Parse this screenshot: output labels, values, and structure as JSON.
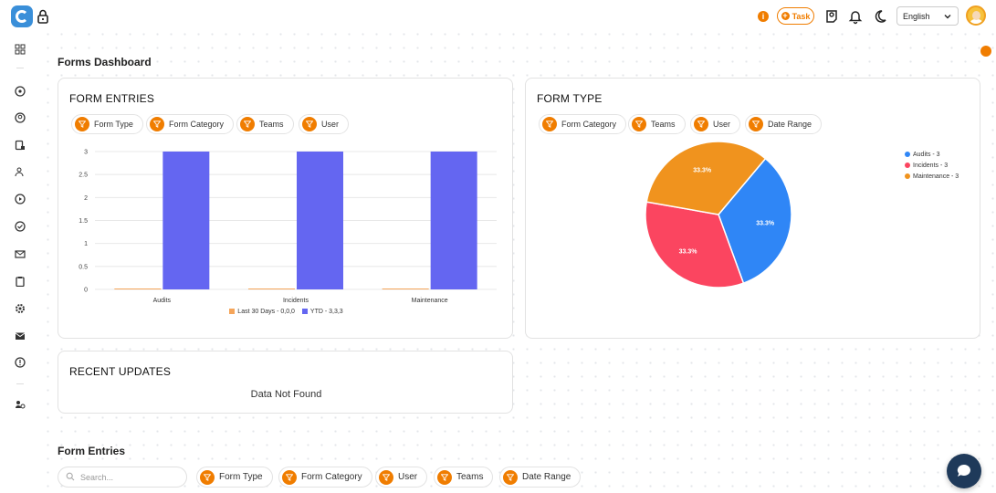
{
  "header": {
    "task_label": "Task",
    "info_badge": "i",
    "language": "English"
  },
  "page": {
    "title": "Forms Dashboard",
    "section2_title": "Form Entries"
  },
  "form_entries_card": {
    "title": "FORM ENTRIES",
    "filters": [
      "Form Type",
      "Form Category",
      "Teams",
      "User"
    ]
  },
  "form_type_card": {
    "title": "FORM TYPE",
    "filters": [
      "Form Category",
      "Teams",
      "User",
      "Date Range"
    ]
  },
  "recent_updates": {
    "title": "RECENT UPDATES",
    "empty_text": "Data Not Found"
  },
  "bottom": {
    "search_placeholder": "Search...",
    "filters": [
      "Form Type",
      "Form Category",
      "User",
      "Teams",
      "Date Range"
    ]
  },
  "chart_data": [
    {
      "type": "bar",
      "categories": [
        "Audits",
        "Incidents",
        "Maintenance"
      ],
      "series": [
        {
          "name": "Last 30 Days - 0,0,0",
          "values": [
            0,
            0,
            0
          ],
          "color": "#f5a55a"
        },
        {
          "name": "YTD - 3,3,3",
          "values": [
            3,
            3,
            3
          ],
          "color": "#6466f1"
        }
      ],
      "yticks": [
        "0",
        "0.5",
        "1",
        "1.5",
        "2",
        "2.5",
        "3"
      ],
      "ylim": [
        0,
        3
      ],
      "grid": true,
      "legend": "bottom"
    },
    {
      "type": "pie",
      "labels": [
        "Audits - 3",
        "Incidents - 3",
        "Maintenance - 3"
      ],
      "values": [
        3,
        3,
        3
      ],
      "slice_labels": [
        "33.3%",
        "33.3%",
        "33.3%"
      ],
      "colors": [
        "#2f86f6",
        "#fb4560",
        "#f0931e"
      ],
      "legend": "right"
    }
  ],
  "colors": {
    "accent": "#f07d00",
    "chat": "#1f3a5a"
  },
  "icons": [
    "lock-icon",
    "task-plus-icon",
    "contact-icon",
    "bell-icon",
    "moon-icon",
    "chevron-down-icon",
    "filter-icon",
    "search-icon",
    "chat-icon"
  ]
}
